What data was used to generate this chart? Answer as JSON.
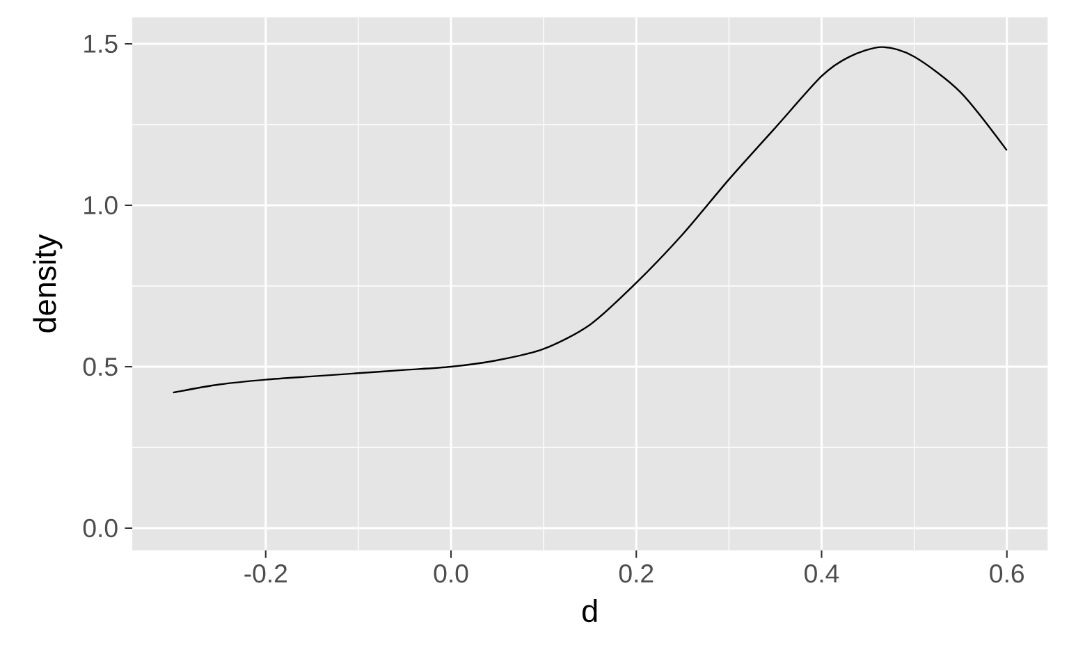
{
  "chart_data": {
    "type": "line",
    "xlabel": "d",
    "ylabel": "density",
    "x": [
      -0.3,
      -0.25,
      -0.2,
      -0.15,
      -0.1,
      -0.05,
      0.0,
      0.05,
      0.1,
      0.15,
      0.2,
      0.25,
      0.3,
      0.35,
      0.4,
      0.43,
      0.465,
      0.5,
      0.55,
      0.6
    ],
    "series": [
      {
        "color": "#000000",
        "values": [
          0.42,
          0.445,
          0.46,
          0.47,
          0.48,
          0.49,
          0.5,
          0.52,
          0.555,
          0.63,
          0.76,
          0.91,
          1.08,
          1.24,
          1.4,
          1.46,
          1.49,
          1.46,
          1.35,
          1.17
        ]
      }
    ],
    "xlim": [
      -0.344,
      0.644
    ],
    "ylim": [
      -0.069,
      1.582
    ],
    "xticks": [
      {
        "value": -0.2,
        "label": "-0.2"
      },
      {
        "value": 0.0,
        "label": "0.0"
      },
      {
        "value": 0.2,
        "label": "0.2"
      },
      {
        "value": 0.4,
        "label": "0.4"
      },
      {
        "value": 0.6,
        "label": "0.6"
      }
    ],
    "yticks": [
      {
        "value": 0.0,
        "label": "0.0"
      },
      {
        "value": 0.5,
        "label": "0.5"
      },
      {
        "value": 1.0,
        "label": "1.0"
      },
      {
        "value": 1.5,
        "label": "1.5"
      }
    ],
    "grid": true,
    "marker": "none",
    "line_style": "solid"
  }
}
